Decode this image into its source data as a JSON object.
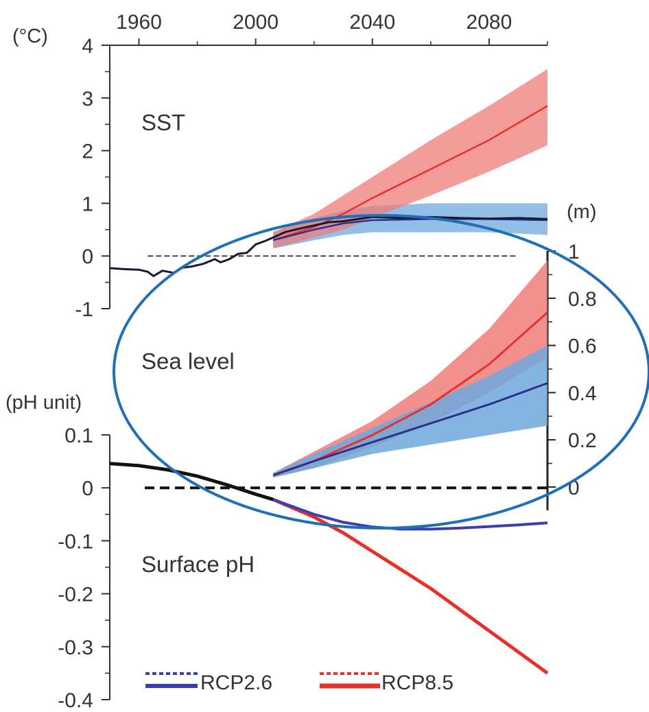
{
  "chart_data": [
    {
      "type": "line",
      "panel": "SST",
      "label": "SST",
      "unit": "(°C)",
      "x_ticks": [
        "1960",
        "2000",
        "2040",
        "2080"
      ],
      "xlim": [
        1950,
        2100
      ],
      "y_ticks": [
        "4",
        "3",
        "2",
        "1",
        "0",
        "-1"
      ],
      "ylim": [
        -1,
        4
      ],
      "reference_line": 0,
      "series": [
        {
          "key": "observed",
          "color": "#1a1a2e",
          "points": [
            [
              1950,
              -0.23
            ],
            [
              1955,
              -0.25
            ],
            [
              1960,
              -0.26
            ],
            [
              1963,
              -0.3
            ],
            [
              1965,
              -0.38
            ],
            [
              1968,
              -0.28
            ],
            [
              1972,
              -0.32
            ],
            [
              1975,
              -0.22
            ],
            [
              1978,
              -0.2
            ],
            [
              1982,
              -0.15
            ],
            [
              1986,
              -0.06
            ],
            [
              1988,
              -0.12
            ],
            [
              1991,
              -0.06
            ],
            [
              1994,
              0.04
            ],
            [
              1997,
              0.06
            ],
            [
              2000,
              0.22
            ],
            [
              2003,
              0.28
            ],
            [
              2006,
              0.35
            ],
            [
              2010,
              0.45
            ],
            [
              2015,
              0.52
            ],
            [
              2020,
              0.58
            ],
            [
              2025,
              0.64
            ],
            [
              2030,
              0.66
            ],
            [
              2040,
              0.74
            ],
            [
              2050,
              0.72
            ],
            [
              2060,
              0.74
            ],
            [
              2070,
              0.72
            ],
            [
              2080,
              0.71
            ],
            [
              2090,
              0.72
            ],
            [
              2100,
              0.7
            ]
          ]
        },
        {
          "key": "RCP2.6",
          "color": "#2b2f8f",
          "band_color": "#6fa8dc",
          "points": [
            [
              2006,
              0.3
            ],
            [
              2020,
              0.5
            ],
            [
              2030,
              0.62
            ],
            [
              2040,
              0.68
            ],
            [
              2060,
              0.7
            ],
            [
              2080,
              0.7
            ],
            [
              2100,
              0.68
            ]
          ],
          "band": [
            [
              2006,
              0.14,
              0.46
            ],
            [
              2020,
              0.3,
              0.72
            ],
            [
              2030,
              0.4,
              0.86
            ],
            [
              2040,
              0.45,
              0.95
            ],
            [
              2060,
              0.45,
              1.0
            ],
            [
              2080,
              0.45,
              1.0
            ],
            [
              2100,
              0.4,
              1.0
            ]
          ]
        },
        {
          "key": "RCP8.5",
          "color": "#e8302a",
          "band_color": "#ef7c78",
          "points": [
            [
              2006,
              0.3
            ],
            [
              2020,
              0.55
            ],
            [
              2030,
              0.8
            ],
            [
              2040,
              1.1
            ],
            [
              2060,
              1.65
            ],
            [
              2080,
              2.2
            ],
            [
              2100,
              2.85
            ]
          ],
          "band": [
            [
              2006,
              0.15,
              0.45
            ],
            [
              2020,
              0.35,
              0.8
            ],
            [
              2030,
              0.5,
              1.15
            ],
            [
              2040,
              0.72,
              1.5
            ],
            [
              2060,
              1.15,
              2.2
            ],
            [
              2080,
              1.6,
              2.85
            ],
            [
              2100,
              2.1,
              3.55
            ]
          ]
        }
      ]
    },
    {
      "type": "area",
      "panel": "Sea level",
      "label": "Sea level",
      "unit": "(m)",
      "y_ticks": [
        "1",
        "0.8",
        "0.6",
        "0.4",
        "0.2",
        "0"
      ],
      "ylim": [
        0,
        1
      ],
      "series": [
        {
          "key": "RCP2.6",
          "color": "#2b2f8f",
          "band_color": "#6fa8dc",
          "points": [
            [
              2006,
              0.05
            ],
            [
              2020,
              0.11
            ],
            [
              2040,
              0.19
            ],
            [
              2060,
              0.27
            ],
            [
              2080,
              0.35
            ],
            [
              2100,
              0.44
            ]
          ],
          "band": [
            [
              2006,
              0.04,
              0.06
            ],
            [
              2020,
              0.08,
              0.14
            ],
            [
              2040,
              0.14,
              0.25
            ],
            [
              2060,
              0.18,
              0.36
            ],
            [
              2080,
              0.22,
              0.47
            ],
            [
              2100,
              0.26,
              0.6
            ]
          ]
        },
        {
          "key": "RCP8.5",
          "color": "#e8302a",
          "band_color": "#ef7c78",
          "points": [
            [
              2006,
              0.05
            ],
            [
              2020,
              0.11
            ],
            [
              2040,
              0.22
            ],
            [
              2060,
              0.35
            ],
            [
              2080,
              0.52
            ],
            [
              2100,
              0.74
            ]
          ],
          "band": [
            [
              2006,
              0.04,
              0.06
            ],
            [
              2020,
              0.08,
              0.15
            ],
            [
              2040,
              0.17,
              0.28
            ],
            [
              2060,
              0.27,
              0.45
            ],
            [
              2080,
              0.4,
              0.67
            ],
            [
              2100,
              0.55,
              0.96
            ]
          ]
        }
      ]
    },
    {
      "type": "line",
      "panel": "Surface pH",
      "label": "Surface pH",
      "unit": "(pH unit)",
      "y_ticks": [
        "0.1",
        "0",
        "-0.1",
        "-0.2",
        "-0.3",
        "-0.4"
      ],
      "ylim": [
        -0.4,
        0.1
      ],
      "reference_line": 0,
      "series": [
        {
          "key": "observed",
          "color": "#111111",
          "points": [
            [
              1950,
              0.046
            ],
            [
              1960,
              0.042
            ],
            [
              1970,
              0.034
            ],
            [
              1980,
              0.022
            ],
            [
              1990,
              0.006
            ],
            [
              2000,
              -0.012
            ],
            [
              2006,
              -0.022
            ]
          ]
        },
        {
          "key": "RCP2.6",
          "color": "#3a3fb0",
          "points": [
            [
              2006,
              -0.022
            ],
            [
              2020,
              -0.05
            ],
            [
              2030,
              -0.065
            ],
            [
              2040,
              -0.074
            ],
            [
              2050,
              -0.078
            ],
            [
              2060,
              -0.078
            ],
            [
              2070,
              -0.076
            ],
            [
              2080,
              -0.073
            ],
            [
              2090,
              -0.07
            ],
            [
              2100,
              -0.066
            ]
          ]
        },
        {
          "key": "RCP8.5",
          "color": "#e8302a",
          "points": [
            [
              2006,
              -0.022
            ],
            [
              2020,
              -0.055
            ],
            [
              2030,
              -0.085
            ],
            [
              2040,
              -0.12
            ],
            [
              2050,
              -0.155
            ],
            [
              2060,
              -0.19
            ],
            [
              2070,
              -0.23
            ],
            [
              2080,
              -0.27
            ],
            [
              2090,
              -0.31
            ],
            [
              2100,
              -0.35
            ]
          ]
        }
      ]
    }
  ],
  "legend": [
    {
      "label": "RCP2.6",
      "color": "#3a3fb0"
    },
    {
      "label": "RCP8.5",
      "color": "#e8302a"
    }
  ],
  "annotation": {
    "shape": "ellipse",
    "color": "#1f6fb8"
  }
}
